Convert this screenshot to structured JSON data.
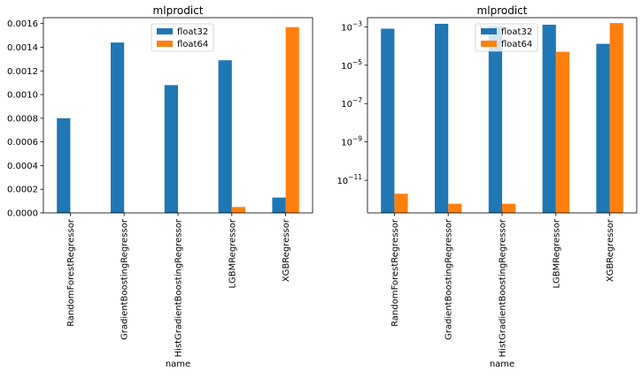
{
  "chart_data": [
    {
      "type": "bar",
      "title": "mlprodict",
      "xlabel": "name",
      "ylabel": "",
      "yscale": "linear",
      "ylim": [
        0,
        0.00165
      ],
      "yticks": [
        0,
        0.0002,
        0.0004,
        0.0006,
        0.0008,
        0.001,
        0.0012,
        0.0014,
        0.0016
      ],
      "ytick_labels": [
        "0.0000",
        "0.0002",
        "0.0004",
        "0.0006",
        "0.0008",
        "0.0010",
        "0.0012",
        "0.0014",
        "0.0016"
      ],
      "categories": [
        "RandomForestRegressor",
        "GradientBoostingRegressor",
        "HistGradientBoostingRegressor",
        "LGBMRegressor",
        "XGBRegressor"
      ],
      "series": [
        {
          "name": "float32",
          "color": "#1f77b4",
          "values": [
            0.0008,
            0.00144,
            0.00108,
            0.00129,
            0.00013
          ]
        },
        {
          "name": "float64",
          "color": "#ff7f0e",
          "values": [
            0.0,
            0.0,
            0.0,
            5e-05,
            0.00157
          ]
        }
      ],
      "legend": "top-center",
      "grid": false
    },
    {
      "type": "bar",
      "title": "mlprodict",
      "xlabel": "name",
      "ylabel": "",
      "yscale": "log",
      "ylim": [
        2e-13,
        0.003
      ],
      "yticks": [
        1e-11,
        1e-09,
        1e-07,
        1e-05,
        0.001
      ],
      "ytick_labels": [
        {
          "base": "10",
          "exp": "−11"
        },
        {
          "base": "10",
          "exp": "−9"
        },
        {
          "base": "10",
          "exp": "−7"
        },
        {
          "base": "10",
          "exp": "−5"
        },
        {
          "base": "10",
          "exp": "−3"
        }
      ],
      "categories": [
        "RandomForestRegressor",
        "GradientBoostingRegressor",
        "HistGradientBoostingRegressor",
        "LGBMRegressor",
        "XGBRegressor"
      ],
      "series": [
        {
          "name": "float32",
          "color": "#1f77b4",
          "values": [
            0.0008,
            0.00144,
            0.00108,
            0.00129,
            0.00013
          ]
        },
        {
          "name": "float64",
          "color": "#ff7f0e",
          "values": [
            2e-12,
            6e-13,
            6e-13,
            5e-05,
            0.00157
          ]
        }
      ],
      "legend": "top-center",
      "grid": false
    }
  ]
}
